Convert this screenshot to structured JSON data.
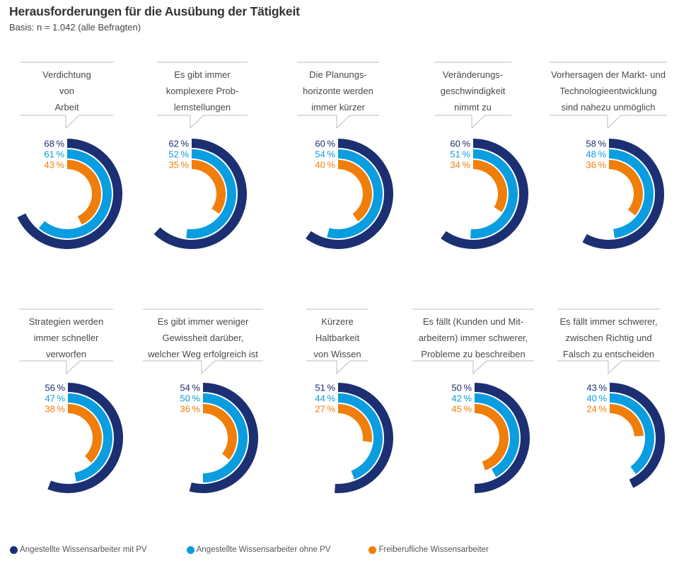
{
  "header": {
    "title": "Herausforderungen für die Ausübung der Tätigkeit",
    "subtitle": "Basis: n = 1.042 (alle Befragten)"
  },
  "colors": {
    "mit_pv": "#1c2f72",
    "ohne_pv": "#0a9de0",
    "freiberuflich": "#f07e0a",
    "rule": "#bdbdbd"
  },
  "legend": [
    {
      "label": "Angestellte Wissensarbeiter mit PV",
      "color": "#1c2f72"
    },
    {
      "label": "Angestellte Wissensarbeiter ohne PV",
      "color": "#0a9de0"
    },
    {
      "label": "Freiberufliche Wissensarbeiter",
      "color": "#f07e0a"
    }
  ],
  "chart_data": {
    "type": "radial-bar",
    "title": "Herausforderungen für die Ausübung der Tätigkeit",
    "subtitle": "Basis: n = 1.042 (alle Befragten)",
    "unit": "%",
    "value_range": [
      0,
      100
    ],
    "series": [
      {
        "name": "Angestellte Wissensarbeiter mit PV",
        "color": "#1c2f72",
        "values": [
          68,
          62,
          60,
          60,
          58,
          56,
          54,
          51,
          50,
          43
        ]
      },
      {
        "name": "Angestellte Wissensarbeiter ohne PV",
        "color": "#0a9de0",
        "values": [
          61,
          52,
          54,
          51,
          48,
          47,
          50,
          44,
          42,
          40
        ]
      },
      {
        "name": "Freiberufliche Wissensarbeiter",
        "color": "#f07e0a",
        "values": [
          43,
          35,
          40,
          34,
          36,
          38,
          36,
          27,
          45,
          24
        ]
      }
    ],
    "categories": [
      {
        "label_lines": [
          "Verdichtung",
          "von",
          "Arbeit"
        ]
      },
      {
        "label_lines": [
          "Es gibt immer",
          "komplexere Prob-",
          "lemstellungen"
        ]
      },
      {
        "label_lines": [
          "Die Planungs-",
          "horizonte werden",
          "immer kürzer"
        ]
      },
      {
        "label_lines": [
          "Veränderungs-",
          "geschwindigkeit",
          "nimmt zu"
        ]
      },
      {
        "label_lines": [
          "Vorhersagen der Markt- und",
          "Technologieentwicklung",
          "sind nahezu unmöglich"
        ]
      },
      {
        "label_lines": [
          "Strategien werden",
          "immer schneller",
          "verworfen"
        ]
      },
      {
        "label_lines": [
          "Es gibt immer weniger",
          "Gewissheit darüber,",
          "welcher Weg erfolgreich ist"
        ]
      },
      {
        "label_lines": [
          "Kürzere",
          "Haltbarkeit",
          "von Wissen"
        ]
      },
      {
        "label_lines": [
          "Es fällt (Kunden und Mit-",
          "arbeitern) immer schwerer,",
          "Probleme zu beschreiben"
        ]
      },
      {
        "label_lines": [
          "Es fällt immer schwerer,",
          "zwischen Richtig und",
          "Falsch zu entscheiden"
        ]
      }
    ],
    "legend_position": "bottom-left",
    "grid": false
  }
}
